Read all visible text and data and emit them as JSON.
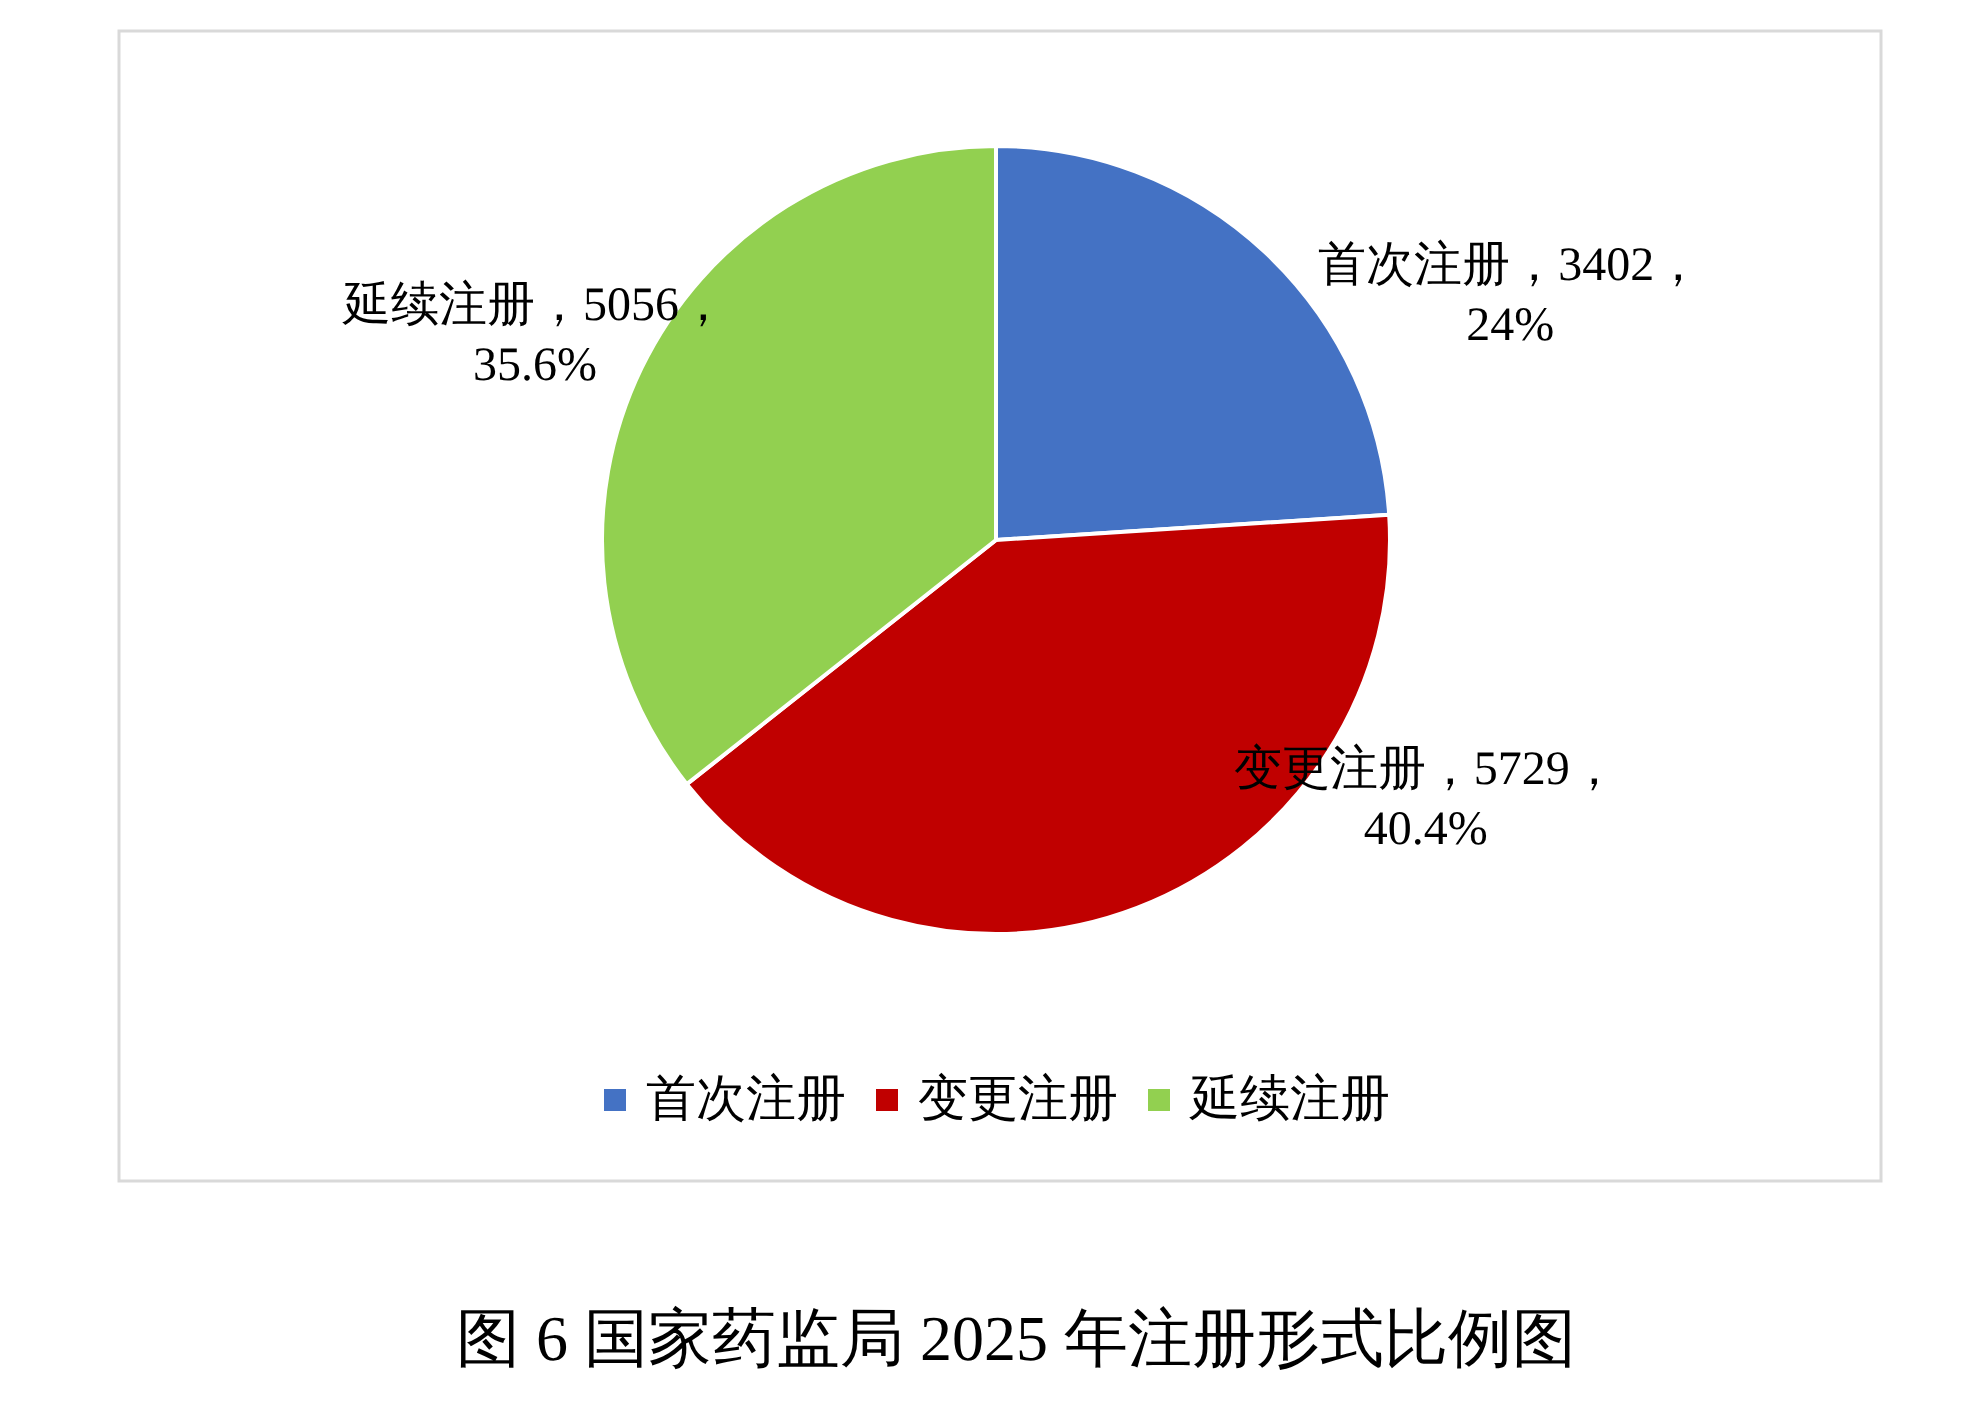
{
  "chart_data": {
    "type": "pie",
    "title": "图 6 国家药监局 2025 年注册形式比例图",
    "categories": [
      "首次注册",
      "变更注册",
      "延续注册"
    ],
    "values": [
      3402,
      5729,
      5056
    ],
    "colors": [
      "#4472c4",
      "#c00000",
      "#92d050"
    ],
    "value_labels": [
      "首次注册，3402，\n24%",
      "变更注册，5729，\n40.4%",
      "延续注册，5056，\n35.6%"
    ],
    "legend": "bottom"
  }
}
